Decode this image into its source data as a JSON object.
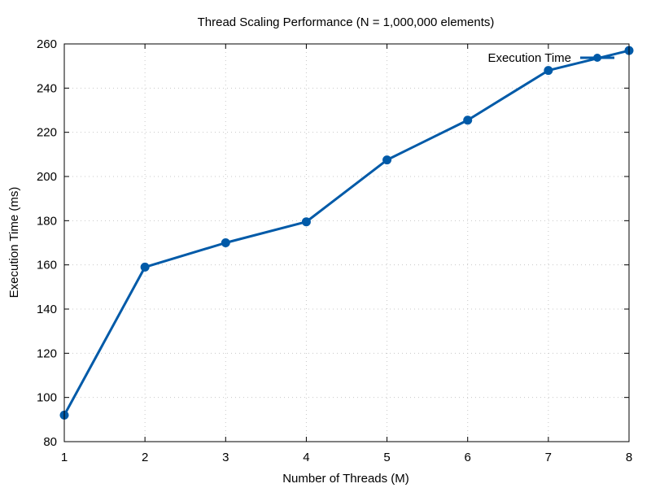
{
  "chart_data": {
    "type": "line",
    "title": "Thread Scaling Performance (N = 1,000,000 elements)",
    "xlabel": "Number of Threads (M)",
    "ylabel": "Execution Time (ms)",
    "xlim": [
      1,
      8
    ],
    "ylim": [
      80,
      260
    ],
    "xticks": [
      1,
      2,
      3,
      4,
      5,
      6,
      7,
      8
    ],
    "yticks": [
      80,
      100,
      120,
      140,
      160,
      180,
      200,
      220,
      240,
      260
    ],
    "grid": true,
    "legend_position": "top-right",
    "series": [
      {
        "name": "Execution Time",
        "color": "#005aa8",
        "marker": "circle",
        "x": [
          1,
          2,
          3,
          4,
          5,
          6,
          7,
          8
        ],
        "values": [
          92,
          159,
          170,
          179.5,
          207.5,
          225.5,
          248,
          257
        ]
      }
    ]
  }
}
